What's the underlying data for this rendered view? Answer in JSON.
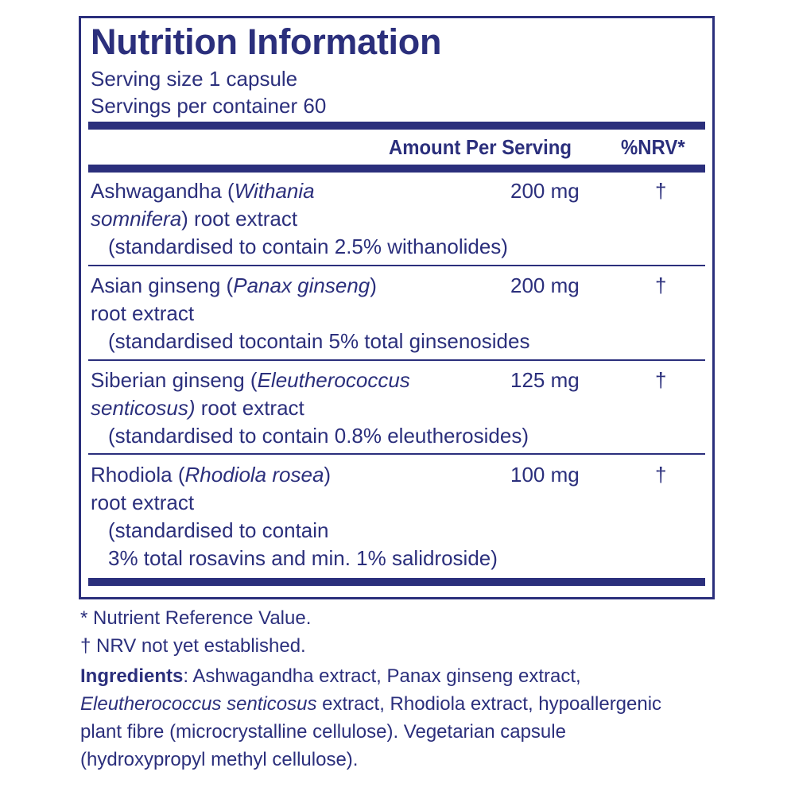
{
  "title": "Nutrition Information",
  "serving_size": "Serving size  1 capsule",
  "servings_per_container": "Servings per container  60",
  "header": {
    "amount": "Amount Per Serving",
    "nrv": "%NRV*"
  },
  "rows": [
    {
      "name_prefix": "Ashwagandha (",
      "name_italic": "Withania",
      "line2_italic": "somnifera",
      "line2_suffix": ") root extract",
      "note_line1": "(standardised to contain 2.5% withanolides)",
      "note_line2": "",
      "amount": "200 mg",
      "nrv": "†"
    },
    {
      "name_prefix": "Asian ginseng (",
      "name_italic": "Panax ginseng",
      "name_suffix": ")",
      "line2_text": "root extract",
      "note_line1": "(standardised tocontain 5% total ginsenosides",
      "note_line2": "",
      "amount": "200 mg",
      "nrv": "†"
    },
    {
      "name_prefix": "Siberian ginseng (",
      "name_italic": "Eleutherococcus",
      "line2_italic": "senticosus)",
      "line2_suffix": " root extract",
      "note_line1": "(standardised to contain 0.8% eleutherosides)",
      "note_line2": "",
      "amount": "125 mg",
      "nrv": "†"
    },
    {
      "name_prefix": "Rhodiola (",
      "name_italic": "Rhodiola rosea",
      "name_suffix": ")",
      "line2_text": "root extract",
      "note_line1": "(standardised to contain",
      "note_line2": "3% total rosavins and min. 1% salidroside)",
      "amount": "100 mg",
      "nrv": "†"
    }
  ],
  "footnotes": {
    "nrv_definition": "* Nutrient Reference Value.",
    "nrv_not_established": "† NRV not yet established.",
    "ingredients_label": "Ingredients",
    "ingredients_line1": ": Ashwagandha extract, Panax ginseng extract,",
    "ingredients_line2_italic": "Eleutherococcus senticosus",
    "ingredients_line2_rest": " extract, Rhodiola extract, hypoallergenic",
    "ingredients_line3": "plant fibre (microcrystalline cellulose). Vegetarian capsule",
    "ingredients_line4": "(hydroxypropyl methyl cellulose)."
  },
  "colors": {
    "ink": "#2b2f7c",
    "background": "#ffffff"
  }
}
